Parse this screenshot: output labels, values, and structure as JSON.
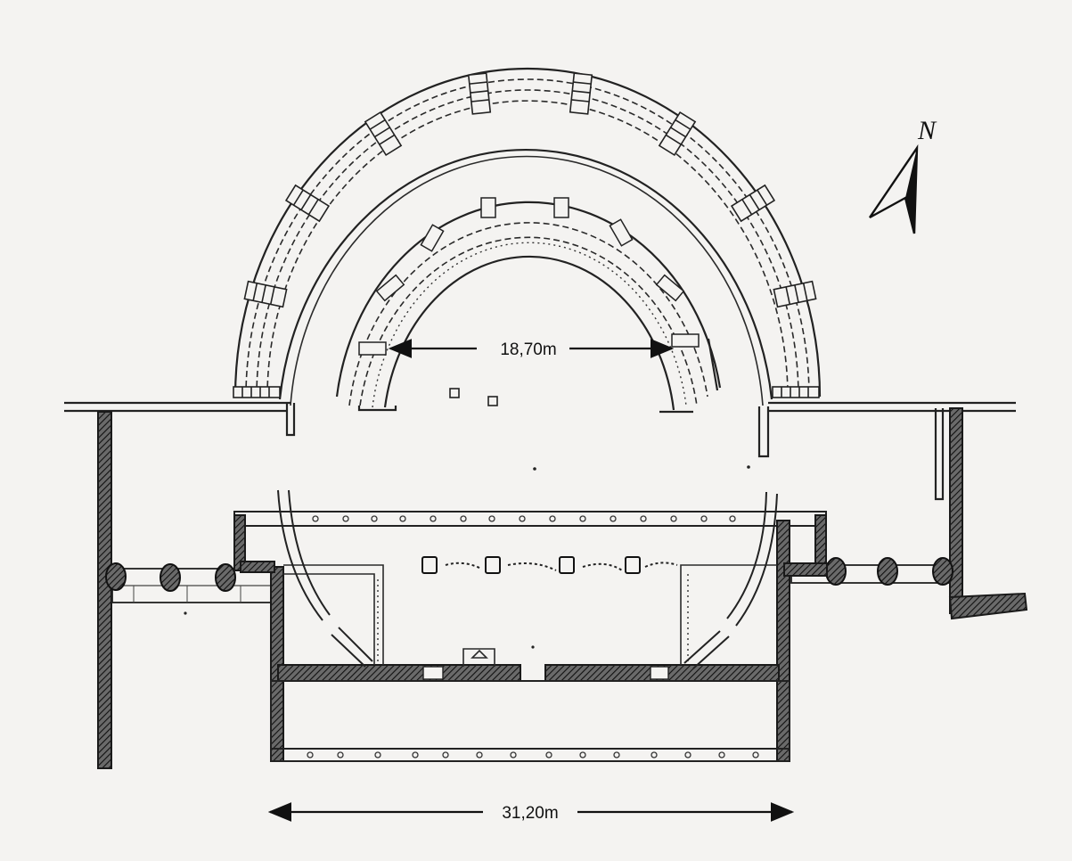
{
  "north_label": "N",
  "dims": {
    "orchestra_width": "18,70m",
    "stage_width": "31,20m"
  }
}
